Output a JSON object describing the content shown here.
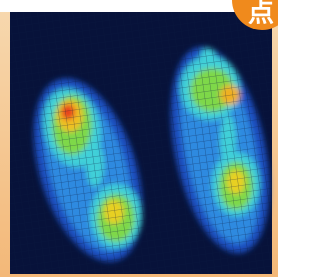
{
  "badge": {
    "text": "点"
  }
}
